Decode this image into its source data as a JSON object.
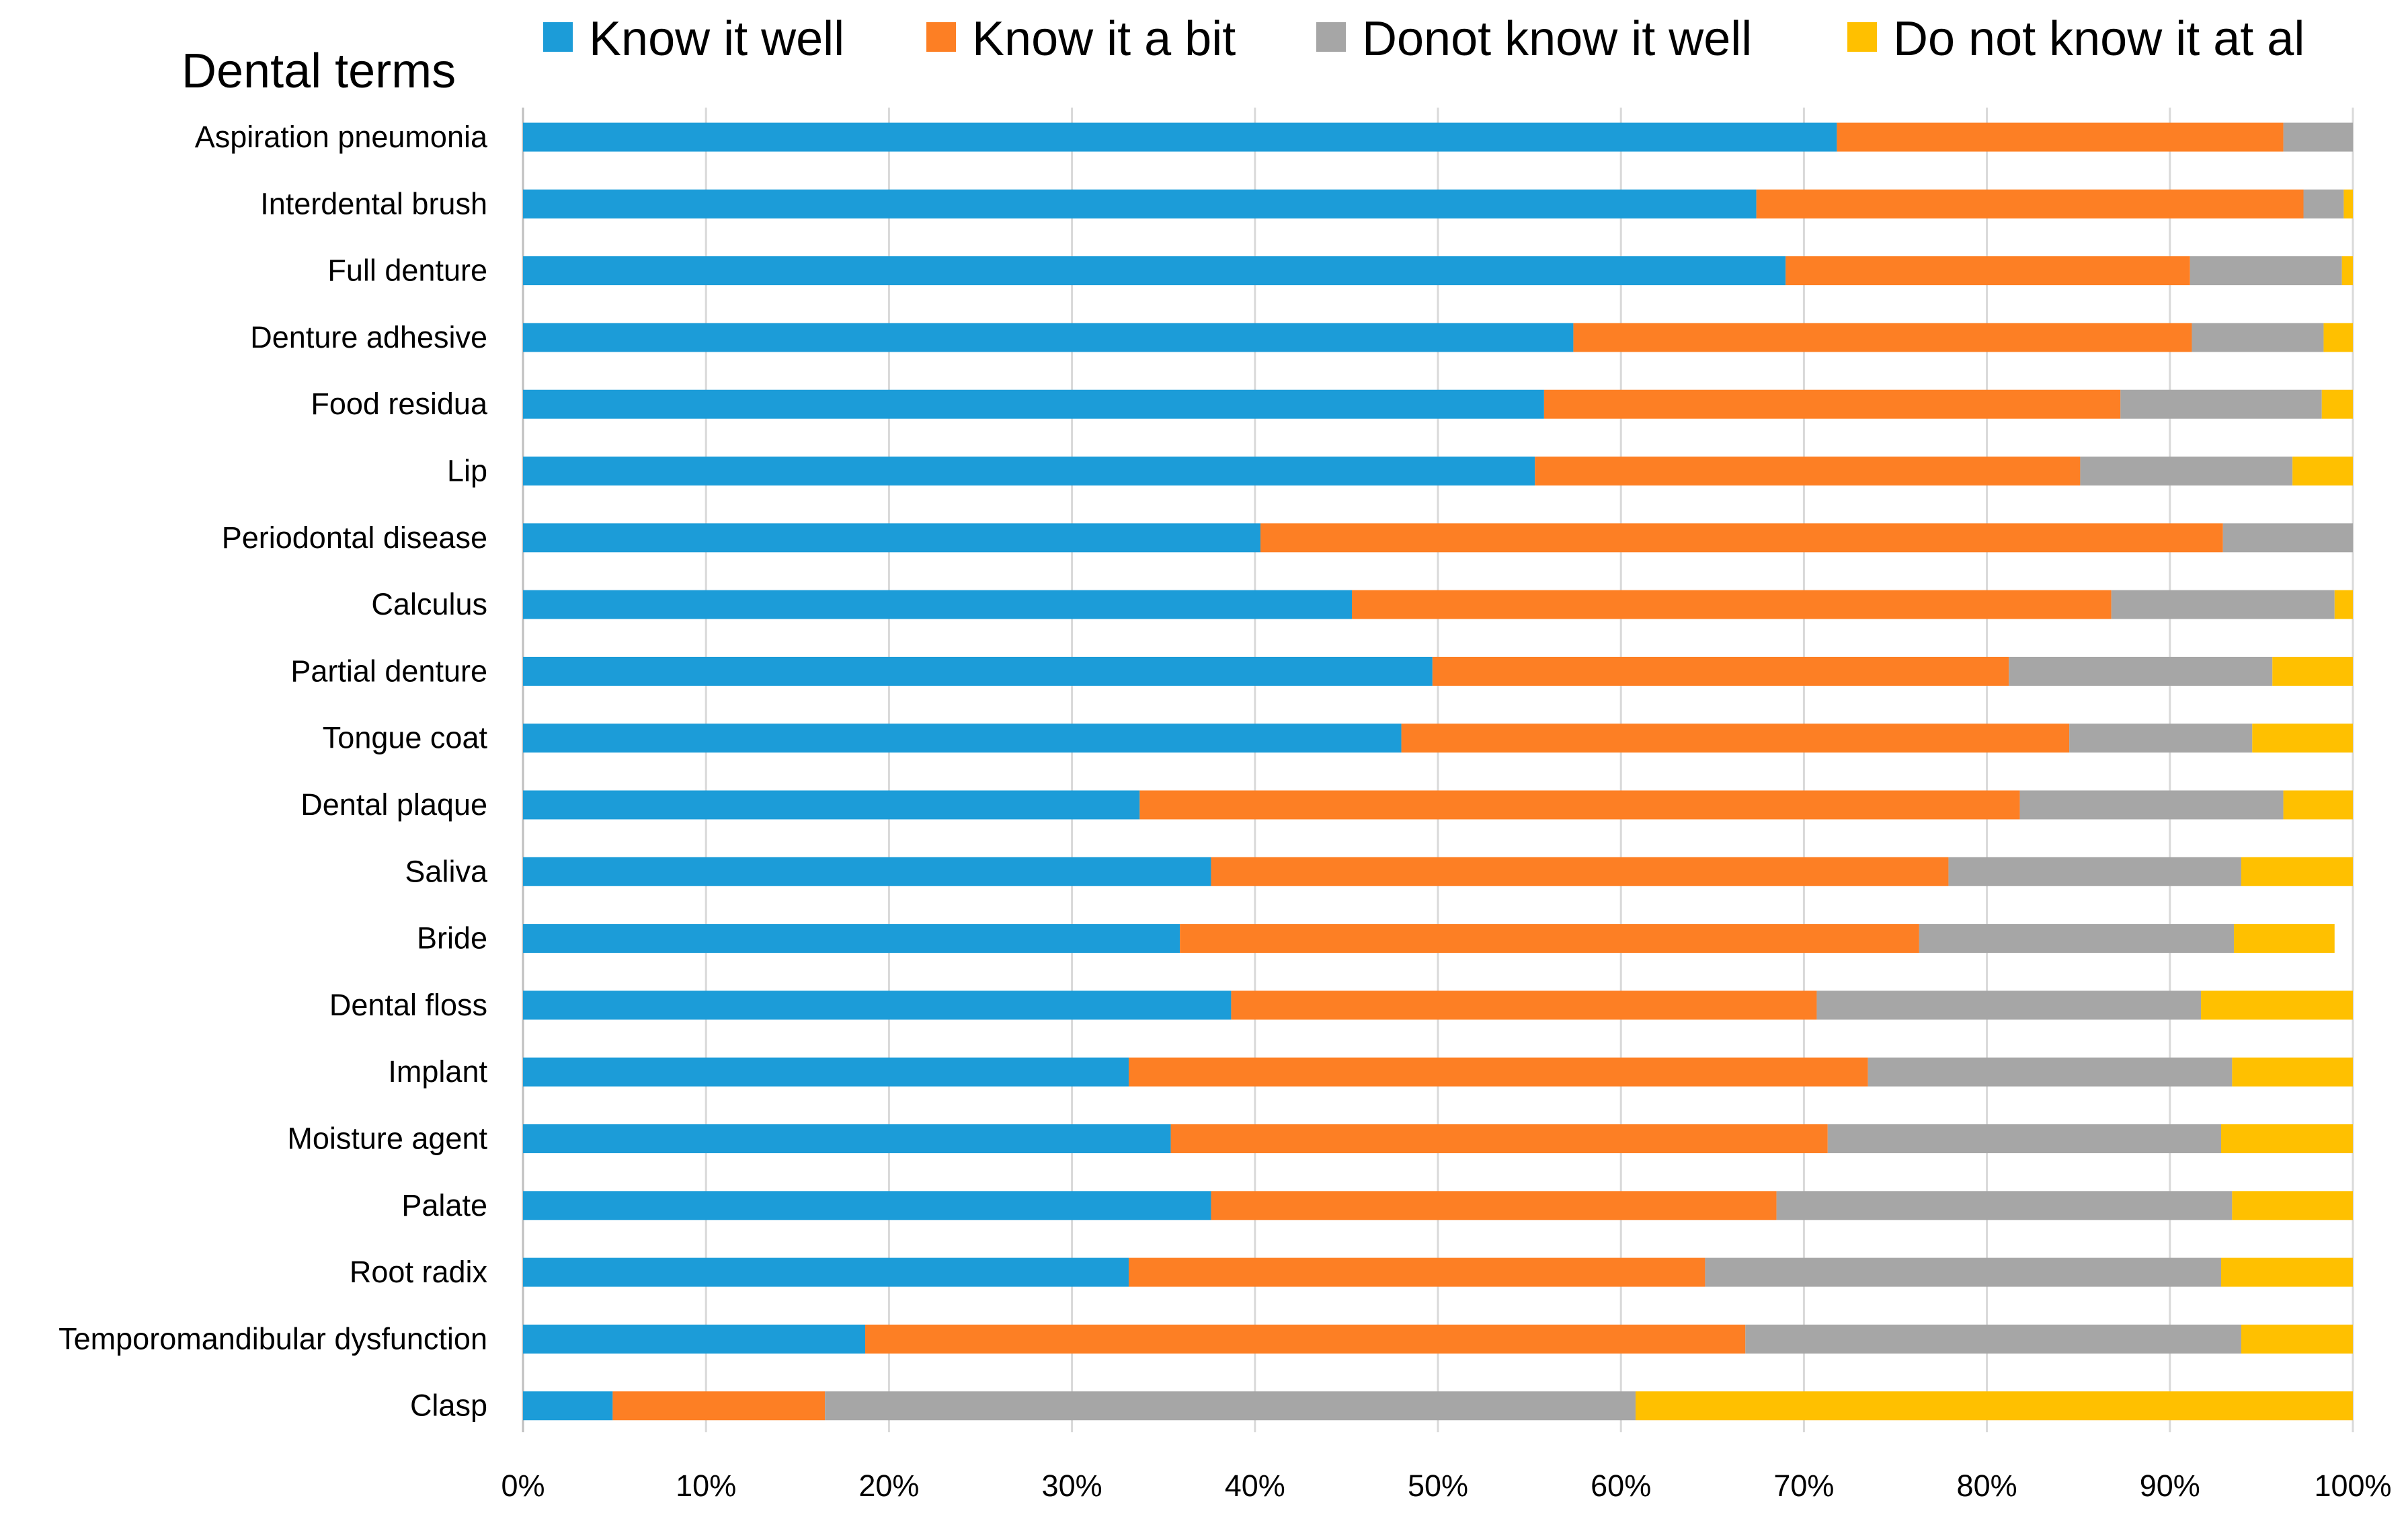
{
  "chart_data": {
    "type": "bar",
    "orientation": "horizontal",
    "stacked": "percent",
    "title": "Dental terms",
    "xlabel": "",
    "ylabel": "",
    "xlim": [
      0,
      100
    ],
    "x_ticks": [
      "0%",
      "10%",
      "20%",
      "30%",
      "40%",
      "50%",
      "60%",
      "70%",
      "80%",
      "90%",
      "100%"
    ],
    "grid": "vertical",
    "legend_position": "top",
    "categories": [
      "Aspiration pneumonia",
      "Interdental brush",
      "Full denture",
      "Denture adhesive",
      "Food residua",
      "Lip",
      "Periodontal disease",
      "Calculus",
      "Partial denture",
      "Tongue coat",
      "Dental plaque",
      "Saliva",
      "Bride",
      "Dental floss",
      "Implant",
      "Moisture agent",
      "Palate",
      "Root radix",
      "Temporomandibular dysfunction",
      "Clasp"
    ],
    "series": [
      {
        "name": "Know it well",
        "color": "#1C9CD8",
        "values": [
          71.8,
          67.4,
          69.0,
          57.4,
          55.8,
          55.3,
          40.3,
          45.3,
          49.7,
          48.0,
          33.7,
          37.6,
          35.9,
          38.7,
          33.1,
          35.4,
          37.6,
          33.1,
          18.7,
          4.9
        ]
      },
      {
        "name": "Know it a bit",
        "color": "#FD7F24",
        "values": [
          24.4,
          29.9,
          22.1,
          33.8,
          31.5,
          29.8,
          52.6,
          41.5,
          31.5,
          36.5,
          48.1,
          40.3,
          40.4,
          32.0,
          40.4,
          35.9,
          30.9,
          31.5,
          48.1,
          11.6
        ]
      },
      {
        "name": "Donot know it well",
        "color": "#A6A6A6",
        "values": [
          3.8,
          2.2,
          8.3,
          7.2,
          11.0,
          11.6,
          7.1,
          12.2,
          14.4,
          10.0,
          14.4,
          16.0,
          17.2,
          21.0,
          19.9,
          21.5,
          24.9,
          28.2,
          27.1,
          44.3
        ]
      },
      {
        "name": "Do not know it at al",
        "color": "#FFC000",
        "values": [
          0.0,
          0.5,
          0.6,
          1.6,
          1.7,
          3.3,
          0.0,
          1.0,
          4.4,
          5.5,
          3.8,
          6.1,
          5.5,
          8.3,
          6.6,
          7.2,
          6.6,
          7.2,
          6.1,
          39.2
        ]
      }
    ]
  }
}
